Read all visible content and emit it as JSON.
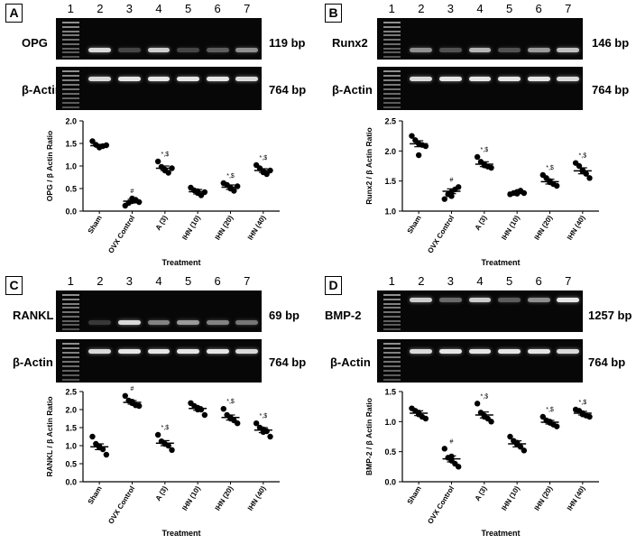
{
  "panels": [
    {
      "letter": "A",
      "lanes": [
        "1",
        "2",
        "3",
        "4",
        "5",
        "6",
        "7"
      ],
      "gene": "OPG",
      "gene_bp": "119 bp",
      "actin": "β-Actin",
      "actin_bp": "764 bp",
      "band_intensity": [
        0,
        0.85,
        0.25,
        0.8,
        0.25,
        0.35,
        0.55
      ],
      "actin_intensity": [
        0,
        0.85,
        0.9,
        0.9,
        0.9,
        0.9,
        0.85
      ],
      "chart_data": {
        "type": "scatter",
        "ylabel": "OPG / β Actin Ratio",
        "xlabel": "Treatment",
        "ylim": [
          0.0,
          2.0
        ],
        "yticks": [
          "0.0",
          "0.5",
          "1.0",
          "1.5",
          "2.0"
        ],
        "categories": [
          "Sham",
          "OVX Control",
          "A (3)",
          "IHN (10)",
          "IHN (20)",
          "IHN (40)"
        ],
        "means": [
          1.45,
          0.22,
          0.95,
          0.43,
          0.53,
          0.9
        ],
        "sem": [
          0.03,
          0.04,
          0.05,
          0.05,
          0.05,
          0.04
        ],
        "points": [
          [
            1.55,
            1.47,
            1.42,
            1.44,
            1.46,
            1.41
          ],
          [
            0.12,
            0.18,
            0.22,
            0.25,
            0.2,
            0.28
          ],
          [
            1.1,
            0.98,
            0.92,
            0.85,
            0.95,
            0.9
          ],
          [
            0.52,
            0.46,
            0.4,
            0.35,
            0.42,
            0.44
          ],
          [
            0.62,
            0.58,
            0.5,
            0.45,
            0.55,
            0.52
          ],
          [
            1.02,
            0.95,
            0.86,
            0.82,
            0.9,
            0.88
          ]
        ],
        "annotations": [
          "",
          "#",
          "*,$",
          "",
          "*,$",
          "*,$"
        ]
      }
    },
    {
      "letter": "B",
      "lanes": [
        "1",
        "2",
        "3",
        "4",
        "5",
        "6",
        "7"
      ],
      "gene": "Runx2",
      "gene_bp": "146 bp",
      "actin": "β-Actin",
      "actin_bp": "764 bp",
      "band_intensity": [
        0,
        0.55,
        0.3,
        0.7,
        0.3,
        0.6,
        0.75
      ],
      "actin_intensity": [
        0,
        0.85,
        0.9,
        0.9,
        0.9,
        0.9,
        0.85
      ],
      "chart_data": {
        "type": "scatter",
        "ylabel": "Runx2 / β Actin Ratio",
        "xlabel": "Treatment",
        "ylim": [
          1.0,
          2.5
        ],
        "yticks": [
          "1.0",
          "1.5",
          "2.0",
          "2.5"
        ],
        "categories": [
          "Sham",
          "OVX Control",
          "A (3)",
          "IHN (10)",
          "IHN (20)",
          "IHN (40)"
        ],
        "means": [
          2.12,
          1.33,
          1.78,
          1.31,
          1.49,
          1.67
        ],
        "sem": [
          0.05,
          0.04,
          0.04,
          0.02,
          0.04,
          0.05
        ],
        "points": [
          [
            2.25,
            2.18,
            2.12,
            2.1,
            2.08,
            1.93
          ],
          [
            1.2,
            1.28,
            1.32,
            1.36,
            1.4,
            1.25
          ],
          [
            1.9,
            1.82,
            1.78,
            1.74,
            1.72,
            1.76
          ],
          [
            1.28,
            1.3,
            1.32,
            1.34,
            1.3,
            1.29
          ],
          [
            1.6,
            1.55,
            1.5,
            1.45,
            1.42,
            1.48
          ],
          [
            1.8,
            1.75,
            1.68,
            1.62,
            1.55,
            1.66
          ]
        ],
        "annotations": [
          "",
          "#",
          "*,$",
          "",
          "*,$",
          "*,$"
        ]
      }
    },
    {
      "letter": "C",
      "lanes": [
        "1",
        "2",
        "3",
        "4",
        "5",
        "6",
        "7"
      ],
      "gene": "RANKL",
      "gene_bp": "69 bp",
      "actin": "β-Actin",
      "actin_bp": "764 bp",
      "band_intensity": [
        0,
        0.2,
        0.85,
        0.5,
        0.6,
        0.5,
        0.45
      ],
      "actin_intensity": [
        0,
        0.85,
        0.9,
        0.9,
        0.9,
        0.9,
        0.85
      ],
      "chart_data": {
        "type": "scatter",
        "ylabel": "RANKL / β Actin Ratio",
        "xlabel": "Treatment",
        "ylim": [
          0.0,
          2.5
        ],
        "yticks": [
          "0.0",
          "0.5",
          "1.0",
          "1.5",
          "2.0",
          "2.5"
        ],
        "categories": [
          "Sham",
          "OVX Control",
          "A (3)",
          "IHN (10)",
          "IHN (20)",
          "IHN (40)"
        ],
        "means": [
          0.97,
          2.2,
          1.07,
          2.03,
          1.78,
          1.43
        ],
        "sem": [
          0.08,
          0.05,
          0.07,
          0.05,
          0.07,
          0.07
        ],
        "points": [
          [
            1.25,
            1.05,
            0.95,
            0.9,
            0.75,
            0.98
          ],
          [
            2.38,
            2.25,
            2.18,
            2.12,
            2.1,
            2.22
          ],
          [
            1.3,
            1.12,
            1.05,
            1.0,
            0.88,
            1.05
          ],
          [
            2.18,
            2.1,
            2.05,
            2.0,
            1.85,
            2.0
          ],
          [
            2.02,
            1.85,
            1.78,
            1.7,
            1.62,
            1.75
          ],
          [
            1.62,
            1.5,
            1.45,
            1.4,
            1.25,
            1.38
          ]
        ],
        "annotations": [
          "",
          "#",
          "*,$",
          "",
          "*,$",
          "*,$"
        ]
      }
    },
    {
      "letter": "D",
      "lanes": [
        "1",
        "2",
        "3",
        "4",
        "5",
        "6",
        "7"
      ],
      "gene": "BMP-2",
      "gene_bp": "1257 bp",
      "actin": "β-Actin",
      "actin_bp": "764 bp",
      "band_intensity": [
        0,
        0.8,
        0.4,
        0.8,
        0.35,
        0.55,
        0.9
      ],
      "actin_intensity": [
        0,
        0.85,
        0.9,
        0.9,
        0.9,
        0.9,
        0.85
      ],
      "chart_data": {
        "type": "scatter",
        "ylabel": "BMP-2 / β Actin Ratio",
        "xlabel": "Treatment",
        "ylim": [
          0.0,
          1.5
        ],
        "yticks": [
          "0.0",
          "0.5",
          "1.0",
          "1.5"
        ],
        "categories": [
          "Sham",
          "OVX Control",
          "A (3)",
          "IHN (10)",
          "IHN (20)",
          "IHN (40)"
        ],
        "means": [
          1.14,
          0.38,
          1.11,
          0.63,
          0.99,
          1.14
        ],
        "sem": [
          0.04,
          0.05,
          0.05,
          0.05,
          0.03,
          0.03
        ],
        "points": [
          [
            1.22,
            1.18,
            1.12,
            1.08,
            1.05,
            1.15
          ],
          [
            0.55,
            0.4,
            0.35,
            0.3,
            0.25,
            0.42
          ],
          [
            1.3,
            1.15,
            1.1,
            1.05,
            1.0,
            1.08
          ],
          [
            0.75,
            0.68,
            0.62,
            0.58,
            0.52,
            0.65
          ],
          [
            1.08,
            1.02,
            0.98,
            0.95,
            0.92,
            1.0
          ],
          [
            1.2,
            1.18,
            1.14,
            1.1,
            1.08,
            1.12
          ]
        ],
        "annotations": [
          "",
          "#",
          "*,$",
          "",
          "*,$",
          "*,$"
        ]
      }
    }
  ]
}
